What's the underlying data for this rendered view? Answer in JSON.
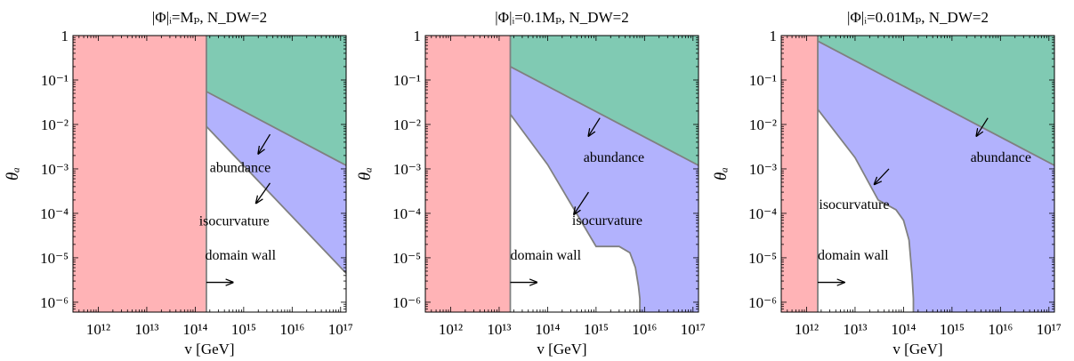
{
  "figure": {
    "panel_count": 3
  },
  "colors": {
    "domain_wall": "#ffb3b6",
    "isocurvature": "#b2b2fd",
    "abundance": "#80cab3",
    "boundary": "#808080"
  },
  "chart_data": [
    {
      "type": "area",
      "title": "|Φ|ᵢ=Mₚ, N_DW=2",
      "xlabel": "v [GeV]",
      "ylabel": "θₐ",
      "x_scale": "log",
      "y_scale": "log",
      "xlim": [
        300000000000.0,
        1.3e+17
      ],
      "ylim": [
        6e-07,
        1
      ],
      "x_ticks": [
        1000000000000.0,
        10000000000000.0,
        100000000000000.0,
        1000000000000000.0,
        1e+16,
        1e+17
      ],
      "x_tick_labels": [
        "10¹²",
        "10¹³",
        "10¹⁴",
        "10¹⁵",
        "10¹⁶",
        "10¹⁷"
      ],
      "y_ticks": [
        1e-06,
        1e-05,
        0.0001,
        0.001,
        0.01,
        0.1,
        1
      ],
      "y_tick_labels": [
        "10⁻⁶",
        "10⁻⁵",
        "10⁻⁴",
        "10⁻³",
        "10⁻²",
        "10⁻¹",
        "1"
      ],
      "grid": false,
      "legend": "none",
      "domain_wall_vmax": 170000000000000.0,
      "abundance_boundary": {
        "x": [
          170000000000000.0,
          1.3e+17
        ],
        "y": [
          0.055,
          0.0012
        ]
      },
      "isocurvature_boundary": {
        "x": [
          170000000000000.0,
          1.3e+17
        ],
        "y": [
          0.009,
          4.5e-06
        ]
      },
      "annotations": [
        {
          "text": "abundance",
          "x": 200000000000000.0,
          "y": 0.00085,
          "arrow": [
            [
              3500000000000000.0,
              0.006
            ],
            [
              2000000000000000.0,
              0.0022
            ]
          ]
        },
        {
          "text": "isocurvature",
          "x": 120000000000000.0,
          "y": 5.3e-05,
          "arrow": [
            [
              3500000000000000.0,
              0.00048
            ],
            [
              1800000000000000.0,
              0.00017
            ]
          ]
        },
        {
          "text": "domain wall",
          "x": 160000000000000.0,
          "y": 9e-06,
          "arrow": [
            [
              170000000000000.0,
              2.8e-06
            ],
            [
              600000000000000.0,
              2.8e-06
            ]
          ]
        }
      ]
    },
    {
      "type": "area",
      "title": "|Φ|ᵢ=0.1Mₚ, N_DW=2",
      "xlabel": "v [GeV]",
      "ylabel": "θₐ",
      "x_scale": "log",
      "y_scale": "log",
      "xlim": [
        300000000000.0,
        1.3e+17
      ],
      "ylim": [
        6e-07,
        1
      ],
      "x_ticks": [
        1000000000000.0,
        10000000000000.0,
        100000000000000.0,
        1000000000000000.0,
        1e+16,
        1e+17
      ],
      "x_tick_labels": [
        "10¹²",
        "10¹³",
        "10¹⁴",
        "10¹⁵",
        "10¹⁶",
        "10¹⁷"
      ],
      "y_ticks": [
        1e-06,
        1e-05,
        0.0001,
        0.001,
        0.01,
        0.1,
        1
      ],
      "y_tick_labels": [
        "10⁻⁶",
        "10⁻⁵",
        "10⁻⁴",
        "10⁻³",
        "10⁻²",
        "10⁻¹",
        "1"
      ],
      "grid": false,
      "legend": "none",
      "domain_wall_vmax": 17000000000000.0,
      "abundance_boundary": {
        "x": [
          17000000000000.0,
          1.3e+17
        ],
        "y": [
          0.2,
          0.0012
        ]
      },
      "isocurvature_boundary": {
        "x": [
          17000000000000.0,
          100000000000000.0,
          1000000000000000.0,
          3000000000000000.0,
          5000000000000000.0,
          6500000000000000.0,
          7500000000000000.0,
          8000000000000000.0,
          8000000000000000.0
        ],
        "y": [
          0.017,
          0.00125,
          1.8e-05,
          1.8e-05,
          1.3e-05,
          6e-06,
          2.3e-06,
          1.2e-06,
          6e-07
        ]
      },
      "annotations": [
        {
          "text": "abundance",
          "x": 550000000000000.0,
          "y": 0.00145,
          "arrow": [
            [
              1200000000000000.0,
              0.014
            ],
            [
              700000000000000.0,
              0.0055
            ]
          ]
        },
        {
          "text": "isocurvature",
          "x": 320000000000000.0,
          "y": 5.5e-05,
          "arrow": [
            [
              700000000000000.0,
              0.0003
            ],
            [
              350000000000000.0,
              9.5e-05
            ]
          ]
        },
        {
          "text": "domain wall",
          "x": 17000000000000.0,
          "y": 9e-06,
          "arrow": [
            [
              17000000000000.0,
              2.8e-06
            ],
            [
              60000000000000.0,
              2.8e-06
            ]
          ]
        }
      ]
    },
    {
      "type": "area",
      "title": "|Φ|ᵢ=0.01Mₚ, N_DW=2",
      "xlabel": "v [GeV]",
      "ylabel": "θₐ",
      "x_scale": "log",
      "y_scale": "log",
      "xlim": [
        300000000000.0,
        1.3e+17
      ],
      "ylim": [
        6e-07,
        1
      ],
      "x_ticks": [
        1000000000000.0,
        10000000000000.0,
        100000000000000.0,
        1000000000000000.0,
        1e+16,
        1e+17
      ],
      "x_tick_labels": [
        "10¹²",
        "10¹³",
        "10¹⁴",
        "10¹⁵",
        "10¹⁶",
        "10¹⁷"
      ],
      "y_ticks": [
        1e-06,
        1e-05,
        0.0001,
        0.001,
        0.01,
        0.1,
        1
      ],
      "y_tick_labels": [
        "10⁻⁶",
        "10⁻⁵",
        "10⁻⁴",
        "10⁻³",
        "10⁻²",
        "10⁻¹",
        "1"
      ],
      "grid": false,
      "legend": "none",
      "domain_wall_vmax": 1700000000000.0,
      "abundance_boundary": {
        "x": [
          1700000000000.0,
          1.3e+17
        ],
        "y": [
          0.75,
          0.0012
        ]
      },
      "isocurvature_boundary": {
        "x": [
          1700000000000.0,
          10000000000000.0,
          30000000000000.0,
          70000000000000.0,
          100000000000000.0,
          130000000000000.0,
          150000000000000.0,
          160000000000000.0,
          160000000000000.0
        ],
        "y": [
          0.022,
          0.0018,
          0.0002,
          0.00012,
          7e-05,
          2.5e-05,
          4e-06,
          1.2e-06,
          6e-07
        ]
      },
      "annotations": [
        {
          "text": "abundance",
          "x": 2400000000000000.0,
          "y": 0.00145,
          "arrow": [
            [
              5500000000000000.0,
              0.014
            ],
            [
              3200000000000000.0,
              0.0055
            ]
          ]
        },
        {
          "text": "isocurvature",
          "x": 1800000000000.0,
          "y": 0.000125,
          "arrow": [
            [
              50000000000000.0,
              0.001
            ],
            [
              25000000000000.0,
              0.00045
            ]
          ]
        },
        {
          "text": "domain wall",
          "x": 1700000000000.0,
          "y": 9e-06,
          "arrow": [
            [
              1700000000000.0,
              2.8e-06
            ],
            [
              6000000000000.0,
              2.8e-06
            ]
          ]
        }
      ]
    }
  ]
}
